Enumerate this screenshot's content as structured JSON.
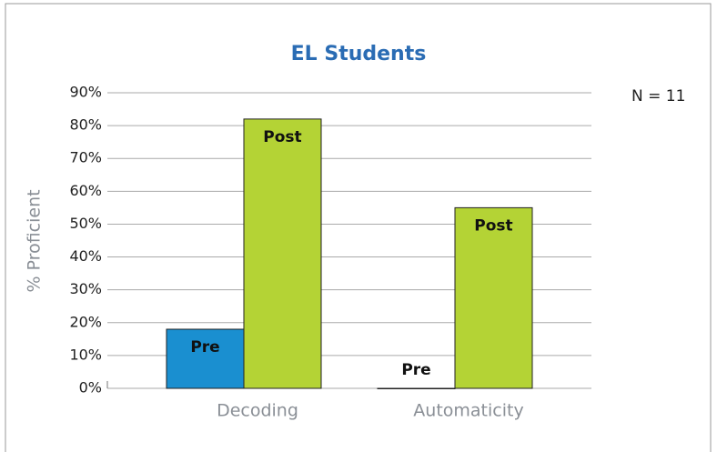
{
  "chart_data": {
    "type": "bar",
    "title": "EL Students",
    "y_label": "% Proficient",
    "annotation": "N = 11",
    "categories": [
      "Decoding",
      "Automaticity"
    ],
    "series": [
      {
        "name": "Pre",
        "color": "#1a8fd0",
        "values": [
          18,
          0
        ]
      },
      {
        "name": "Post",
        "color": "#b4d335",
        "values": [
          82,
          55
        ]
      }
    ],
    "ylim": [
      0,
      90
    ],
    "yticks": [
      {
        "value": 0,
        "label": "0%"
      },
      {
        "value": 10,
        "label": "10%"
      },
      {
        "value": 20,
        "label": "20%"
      },
      {
        "value": 30,
        "label": "30%"
      },
      {
        "value": 40,
        "label": "40%"
      },
      {
        "value": 50,
        "label": "50%"
      },
      {
        "value": 60,
        "label": "60%"
      },
      {
        "value": 70,
        "label": "70%"
      },
      {
        "value": 80,
        "label": "80%"
      },
      {
        "value": 90,
        "label": "90%"
      }
    ],
    "grid": true
  }
}
